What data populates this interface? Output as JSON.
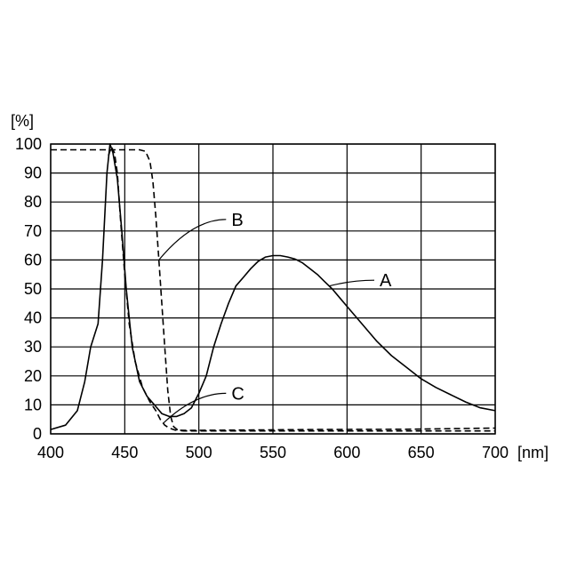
{
  "chart_data": {
    "type": "line",
    "title": "",
    "xlabel": "",
    "ylabel": "",
    "x_unit": "[nm]",
    "y_unit": "[%]",
    "xlim": [
      400,
      700
    ],
    "ylim": [
      0,
      100
    ],
    "x_ticks": [
      400,
      450,
      500,
      550,
      600,
      650,
      700
    ],
    "y_ticks": [
      0,
      10,
      20,
      30,
      40,
      50,
      60,
      70,
      80,
      90,
      100
    ],
    "grid": true,
    "series": [
      {
        "name": "A",
        "style": "solid",
        "points": [
          [
            400,
            1.5
          ],
          [
            410,
            3
          ],
          [
            418,
            8
          ],
          [
            423,
            18
          ],
          [
            427,
            30
          ],
          [
            432,
            38
          ],
          [
            435,
            60
          ],
          [
            438,
            90
          ],
          [
            440,
            100
          ],
          [
            442,
            97
          ],
          [
            445,
            88
          ],
          [
            448,
            70
          ],
          [
            451,
            50
          ],
          [
            455,
            30
          ],
          [
            460,
            18
          ],
          [
            465,
            13
          ],
          [
            470,
            10
          ],
          [
            475,
            7
          ],
          [
            480,
            6
          ],
          [
            485,
            6
          ],
          [
            490,
            7
          ],
          [
            495,
            9
          ],
          [
            500,
            14
          ],
          [
            505,
            20
          ],
          [
            510,
            30
          ],
          [
            515,
            38
          ],
          [
            520,
            45
          ],
          [
            525,
            51
          ],
          [
            530,
            54
          ],
          [
            535,
            57
          ],
          [
            540,
            59.5
          ],
          [
            545,
            61
          ],
          [
            550,
            61.5
          ],
          [
            555,
            61.5
          ],
          [
            560,
            61
          ],
          [
            565,
            60.3
          ],
          [
            570,
            59
          ],
          [
            575,
            57
          ],
          [
            580,
            55
          ],
          [
            585,
            52.5
          ],
          [
            590,
            50
          ],
          [
            595,
            47
          ],
          [
            600,
            44
          ],
          [
            610,
            38
          ],
          [
            620,
            32
          ],
          [
            630,
            27
          ],
          [
            640,
            23
          ],
          [
            650,
            19
          ],
          [
            660,
            16
          ],
          [
            670,
            13.5
          ],
          [
            680,
            11
          ],
          [
            690,
            9
          ],
          [
            700,
            8
          ]
        ]
      },
      {
        "name": "B",
        "style": "dashed",
        "points": [
          [
            400,
            98
          ],
          [
            420,
            98
          ],
          [
            440,
            98
          ],
          [
            460,
            98
          ],
          [
            464,
            97.5
          ],
          [
            467,
            94
          ],
          [
            469,
            87
          ],
          [
            471,
            75
          ],
          [
            473,
            60
          ],
          [
            475,
            45
          ],
          [
            477,
            30
          ],
          [
            479,
            15
          ],
          [
            481,
            6
          ],
          [
            483,
            2.5
          ],
          [
            486,
            1.2
          ],
          [
            490,
            1
          ],
          [
            500,
            1
          ],
          [
            550,
            1
          ],
          [
            600,
            1
          ],
          [
            650,
            1
          ],
          [
            700,
            1
          ]
        ]
      },
      {
        "name": "C",
        "style": "dashed",
        "points": [
          [
            439,
            96
          ],
          [
            441,
            99
          ],
          [
            443,
            97
          ],
          [
            445,
            90
          ],
          [
            447,
            75
          ],
          [
            450,
            55
          ],
          [
            453,
            38
          ],
          [
            457,
            25
          ],
          [
            462,
            16
          ],
          [
            467,
            11
          ],
          [
            471,
            8
          ],
          [
            474,
            5
          ],
          [
            477,
            3
          ],
          [
            480,
            2
          ],
          [
            484,
            1.3
          ],
          [
            490,
            1.2
          ],
          [
            520,
            1.3
          ],
          [
            580,
            1.5
          ],
          [
            640,
            1.6
          ],
          [
            700,
            2
          ]
        ]
      }
    ],
    "annotations": [
      {
        "text": "A",
        "x": 622,
        "y": 53
      },
      {
        "text": "B",
        "x": 522,
        "y": 74
      },
      {
        "text": "C",
        "x": 522,
        "y": 14
      }
    ]
  }
}
